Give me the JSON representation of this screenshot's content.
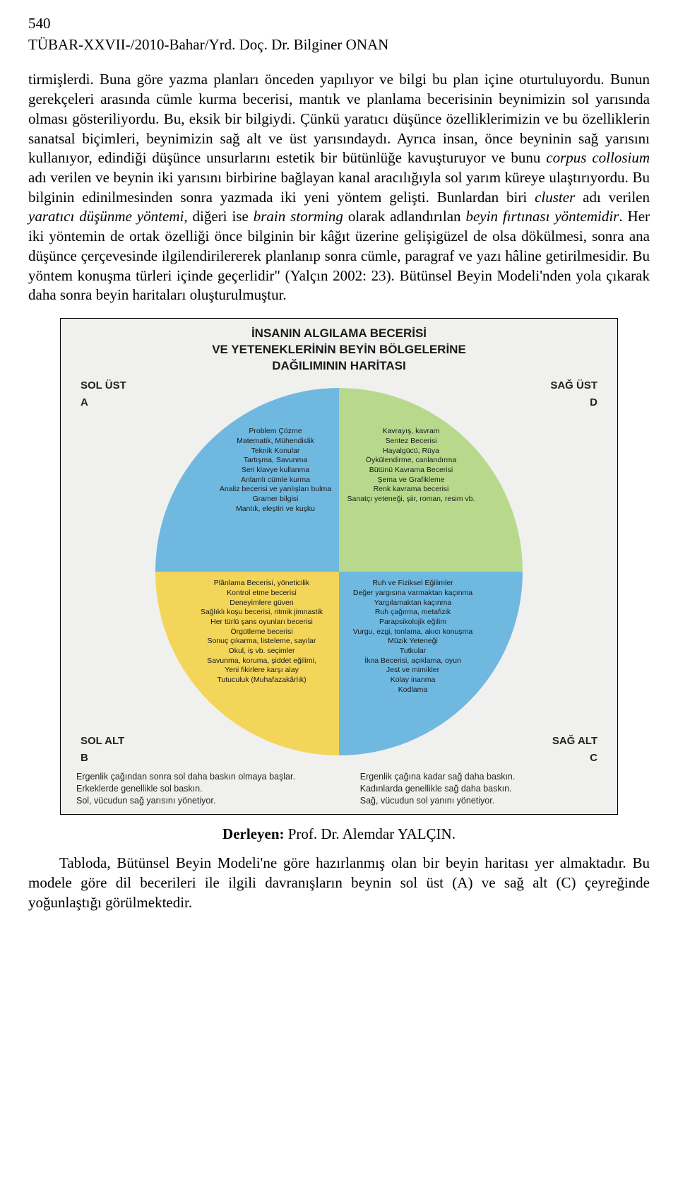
{
  "page_number": "540",
  "header": "TÜBAR-XXVII-/2010-Bahar/Yrd. Doç. Dr. Bilginer ONAN",
  "body_html": "tirmişlerdi. Buna göre yazma planları önceden yapılıyor ve bilgi bu plan içine oturtuluyordu. Bunun gerekçeleri arasında cümle kurma becerisi, mantık ve planlama becerisinin beynimizin sol yarısında olması gösteriliyordu. Bu, eksik bir bilgiydi. Çünkü yaratıcı düşünce özelliklerimizin ve bu özelliklerin sanatsal biçimleri, beynimizin sağ alt ve üst yarısındaydı. Ayrıca insan, önce beyninin sağ yarısını kullanıyor, edindiği düşünce unsurlarını estetik bir bütünlüğe kavuşturuyor ve bunu <span class=\"italic\">corpus collosium</span> adı verilen ve beynin iki yarısını birbirine bağlayan kanal aracılığıyla sol yarım küreye ulaştırıyordu. Bu bilginin edinilmesinden sonra yazmada iki yeni yöntem gelişti. Bunlardan biri <span class=\"italic\">cluster</span> adı verilen <span class=\"italic\">yaratıcı düşünme yöntemi</span>, diğeri ise <span class=\"italic\">brain storming</span> olarak adlandırılan <span class=\"italic\">beyin fırtınası yöntemidir</span>. Her iki yöntemin de ortak özelliği önce bilginin bir kâğıt üzerine gelişigüzel de olsa dökülmesi, sonra ana düşünce çerçevesinde ilgilendirilererek planlanıp sonra cümle, paragraf ve yazı hâline getirilmesidir. Bu yöntem konuşma türleri içinde geçerlidir\" (Yalçın 2002: 23). Bütünsel Beyin Modeli'nden yola çıkarak daha sonra beyin haritaları oluşturulmuştur.",
  "diagram": {
    "title_line1": "İNSANIN ALGILAMA BECERİSİ",
    "title_line2": "VE YETENEKLERİNİN BEYİN BÖLGELERİNE",
    "title_line3": "DAĞILIMININ HARİTASI",
    "quadrants": {
      "a": {
        "name": "SOL ÜST",
        "letter": "A"
      },
      "d": {
        "name": "SAĞ ÜST",
        "letter": "D"
      },
      "b": {
        "name": "SOL ALT",
        "letter": "B"
      },
      "c": {
        "name": "SAĞ ALT",
        "letter": "C"
      }
    },
    "colors": {
      "a": "#6fb8e0",
      "d": "#b8d98c",
      "b": "#f3d55a",
      "c": "#6fb8e0",
      "background": "#f0f0ee"
    },
    "slice_text": {
      "a": "Problem Çözme\nMatematik, Mühendislik\nTeknik Konular\nTartışma, Savunma\nSeri klavye kullanma\nAnlamlı cümle kurma\nAnaliz becerisi ve yanlışları bulma\nGramer bilgisi\nMantık, eleştiri ve kuşku",
      "d": "Kavrayış, kavram\nSentez Becerisi\nHayalgücü, Rüya\nÖykülendirme, canlandırma\nBütünü Kavrama Becerisi\nŞema ve Grafikleme\nRenk kavrama becerisi\nSanatçı yeteneği, şiir, roman, resim vb.",
      "b": "Plânlama Becerisi, yöneticilik\nKontrol etme becerisi\nDeneyimlere güven\nSağlıklı koşu becerisi, ritmik jimnastik\nHer türlü şans oyunları becerisi\nÖrgütleme becerisi\nSonuç çıkarma, listeleme, sayılar\nOkul, iş vb. seçimler\nSavunma, koruma, şiddet eğilimi,\nYeni fikirlere karşı alay\nTutuculuk (Muhafazakârlık)",
      "c": "Ruh ve Fiziksel Eğilimler\nDeğer yargısına varmaktan kaçınma\nYargılamaktan kaçınma\nRuh çağırma, metafizik\nParapsikolojik eğilim\nVurgu, ezgi, tonlama, akıcı konuşma\nMüzik Yeteneği\nTutkular\nİkna Becerisi, açıklama, oyun\nJest ve mimikler\nKolay inanma\nKodlama"
    },
    "bottom_left": "Ergenlik çağından sonra sol daha baskın olmaya başlar.\nErkeklerde genellikle sol baskın.\nSol, vücudun sağ yarısını yönetiyor.",
    "bottom_right": "Ergenlik çağına kadar sağ daha baskın.\nKadınlarda genellikle sağ daha baskın.\nSağ, vücudun sol yanını yönetiyor."
  },
  "credit_label": "Derleyen:",
  "credit_name": " Prof. Dr. Alemdar YALÇIN.",
  "final_para": "Tabloda, Bütünsel Beyin Modeli'ne göre hazırlanmış olan bir beyin haritası yer almaktadır. Bu modele göre dil becerileri ile ilgili davranışların beynin sol üst (A) ve sağ alt (C) çeyreğinde yoğunlaştığı görülmektedir."
}
